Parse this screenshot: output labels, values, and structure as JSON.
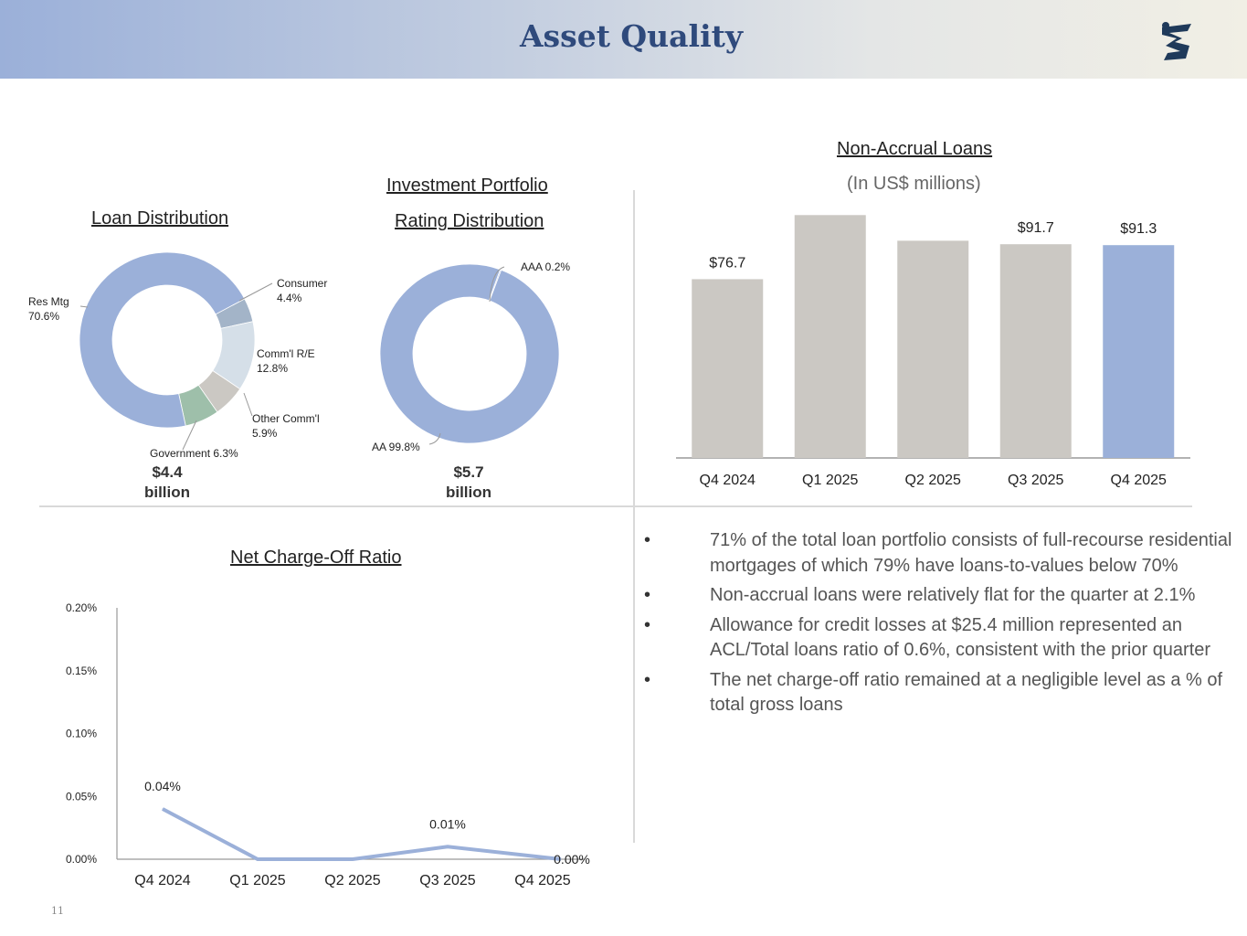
{
  "header": {
    "title": "Asset Quality",
    "logo_icon": "lion-logo-icon",
    "colors": {
      "title": "#2f4a7c",
      "accent": "#9bb0d9",
      "bar_gray": "#cbc8c3"
    }
  },
  "loan_distribution": {
    "title": "Loan Distribution",
    "total_line1": "$4.4",
    "total_line2": "billion",
    "labels": {
      "res_mtg_name": "Res Mtg",
      "res_mtg_pct": "70.6%",
      "consumer_name": "Consumer",
      "consumer_pct": "4.4%",
      "comm_re_name": "Comm'l R/E",
      "comm_re_pct": "12.8%",
      "other_comm_name": "Other Comm'l",
      "other_comm_pct": "5.9%",
      "government": "Government 6.3%"
    }
  },
  "investment_portfolio": {
    "title_line1": "Investment Portfolio",
    "title_line2": "Rating Distribution",
    "total_line1": "$5.7",
    "total_line2": "billion",
    "labels": {
      "aaa": "AAA 0.2%",
      "aa": "AA 99.8%"
    }
  },
  "non_accrual": {
    "title": "Non-Accrual Loans",
    "subtitle": "(In US$ millions)"
  },
  "net_charge_off": {
    "title": "Net Charge-Off Ratio"
  },
  "bullets": [
    "71% of the total loan portfolio consists of full-recourse residential mortgages of which 79% have loans-to-values below 70%",
    "Non-accrual loans were relatively flat for the quarter at 2.1%",
    "Allowance for credit losses at $25.4 million represented an ACL/Total loans ratio of 0.6%, consistent with the prior quarter",
    "The net charge-off ratio remained at a negligible level as a % of total gross loans"
  ],
  "bullet_symbol": "•",
  "page_number": "11",
  "chart_data": [
    {
      "type": "pie",
      "name": "loan-distribution",
      "title": "Loan Distribution",
      "donut": true,
      "slices": [
        {
          "label": "Res Mtg",
          "value": 70.6,
          "color": "#9bb0d9"
        },
        {
          "label": "Consumer",
          "value": 4.4,
          "color": "#a3b4c8"
        },
        {
          "label": "Comm'l R/E",
          "value": 12.8,
          "color": "#d5dfe8"
        },
        {
          "label": "Other Comm'l",
          "value": 5.9,
          "color": "#cbc8c3"
        },
        {
          "label": "Government",
          "value": 6.3,
          "color": "#9ebfaa"
        }
      ]
    },
    {
      "type": "pie",
      "name": "investment-portfolio",
      "title": "Investment Portfolio Rating Distribution",
      "donut": true,
      "slices": [
        {
          "label": "AAA",
          "value": 0.2,
          "color": "#9bb0d9"
        },
        {
          "label": "AA",
          "value": 99.8,
          "color": "#9bb0d9"
        }
      ]
    },
    {
      "type": "bar",
      "name": "non-accrual-loans",
      "title": "Non-Accrual Loans",
      "ylabel": "In US$ millions",
      "categories": [
        "Q4 2024",
        "Q1 2025",
        "Q2 2025",
        "Q3 2025",
        "Q4 2025"
      ],
      "values": [
        76.7,
        104.2,
        93.2,
        91.7,
        91.3
      ],
      "data_labels": [
        "$76.7",
        "",
        "",
        "$91.7",
        "$91.3"
      ],
      "colors": [
        "#cbc8c3",
        "#cbc8c3",
        "#cbc8c3",
        "#cbc8c3",
        "#9bb0d9"
      ],
      "ylim": [
        0,
        110
      ]
    },
    {
      "type": "line",
      "name": "net-charge-off-ratio",
      "title": "Net Charge-Off Ratio",
      "categories": [
        "Q4 2024",
        "Q1 2025",
        "Q2 2025",
        "Q3 2025",
        "Q4 2025"
      ],
      "values": [
        0.04,
        0.0,
        0.0,
        0.01,
        0.0
      ],
      "data_labels": [
        "0.04%",
        "",
        "",
        "0.01%",
        "0.00%"
      ],
      "yticks": [
        "0.00%",
        "0.05%",
        "0.10%",
        "0.15%",
        "0.20%"
      ],
      "ylim": [
        0,
        0.2
      ],
      "color": "#9bb0d9"
    }
  ]
}
